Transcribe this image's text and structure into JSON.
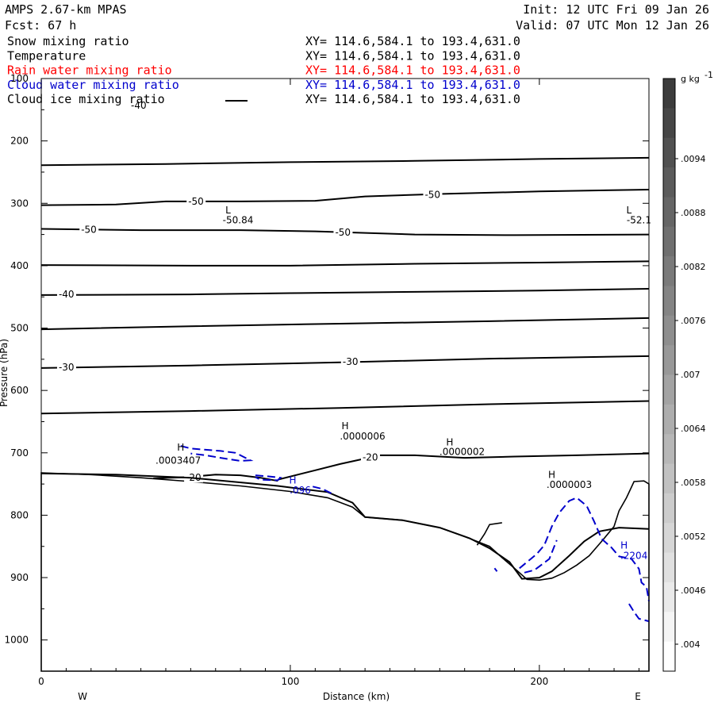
{
  "header": {
    "model": "AMPS 2.67-km MPAS",
    "fcst": "Fcst:    67 h",
    "init": "Init: 12 UTC Fri 09 Jan 26",
    "valid": "Valid: 07 UTC Mon 12 Jan 26"
  },
  "legend": [
    {
      "name": "Snow mixing ratio",
      "xy": "XY= 114.6,584.1 to 193.4,631.0",
      "color": "#000000"
    },
    {
      "name": "Temperature",
      "xy": "XY= 114.6,584.1 to 193.4,631.0",
      "color": "#000000"
    },
    {
      "name": "Rain water mixing ratio",
      "xy": "XY= 114.6,584.1 to 193.4,631.0",
      "color": "#ff0000"
    },
    {
      "name": "Cloud water mixing ratio",
      "xy": "XY= 114.6,584.1 to 193.4,631.0",
      "color": "#0000cc"
    },
    {
      "name": "Cloud ice mixing ratio",
      "xy": "XY= 114.6,584.1 to 193.4,631.0",
      "color": "#000000"
    }
  ],
  "chart_data": {
    "type": "cross-section",
    "xlabel": "Distance (km)",
    "ylabel": "Pressure (hPa)",
    "xlim": [
      0,
      244
    ],
    "ylim": [
      1050,
      100
    ],
    "xticks": [
      0,
      100,
      200
    ],
    "yticks": [
      100,
      200,
      300,
      400,
      500,
      600,
      700,
      800,
      900,
      1000
    ],
    "direction_labels": {
      "left": "W",
      "right": "E"
    },
    "colorbar": {
      "unit": "g kg",
      "unit_sup": "-1",
      "labels": [
        ".0094",
        ".0088",
        ".0082",
        ".0076",
        ".007",
        ".0064",
        ".0058",
        ".0052",
        ".0046",
        ".004"
      ]
    },
    "temperature_contours": [
      {
        "points": [
          [
            0,
            239
          ],
          [
            50,
            237
          ],
          [
            100,
            234
          ],
          [
            150,
            232
          ],
          [
            200,
            229
          ],
          [
            244,
            227
          ]
        ]
      },
      {
        "points": [
          [
            0,
            303
          ],
          [
            30,
            302
          ],
          [
            50,
            297
          ],
          [
            80,
            297
          ],
          [
            110,
            296
          ],
          [
            130,
            289
          ],
          [
            160,
            285
          ],
          [
            200,
            281
          ],
          [
            244,
            278
          ]
        ],
        "labels": [
          {
            "x": 59,
            "p": 297,
            "text": "-50"
          },
          {
            "x": 154,
            "p": 286,
            "text": "-50"
          }
        ]
      },
      {
        "points": [
          [
            0,
            341
          ],
          [
            40,
            343
          ],
          [
            80,
            343
          ],
          [
            110,
            345
          ],
          [
            150,
            350
          ],
          [
            190,
            351
          ],
          [
            244,
            350
          ]
        ],
        "labels": [
          {
            "x": 16,
            "p": 342,
            "text": "-50"
          },
          {
            "x": 118,
            "p": 347,
            "text": "-50"
          }
        ]
      },
      {
        "points": [
          [
            0,
            399
          ],
          [
            60,
            400
          ],
          [
            100,
            400
          ],
          [
            150,
            397
          ],
          [
            200,
            395
          ],
          [
            244,
            393
          ]
        ]
      },
      {
        "points": [
          [
            0,
            447
          ],
          [
            60,
            446
          ],
          [
            100,
            444
          ],
          [
            150,
            442
          ],
          [
            200,
            440
          ],
          [
            244,
            437
          ]
        ],
        "labels": [
          {
            "x": 7,
            "p": 446,
            "text": "-40"
          }
        ]
      },
      {
        "points": [
          [
            0,
            502
          ],
          [
            60,
            497
          ],
          [
            120,
            493
          ],
          [
            180,
            489
          ],
          [
            244,
            484
          ]
        ]
      },
      {
        "points": [
          [
            0,
            564
          ],
          [
            60,
            560
          ],
          [
            120,
            555
          ],
          [
            180,
            549
          ],
          [
            244,
            545
          ]
        ],
        "labels": [
          {
            "x": 7,
            "p": 563,
            "text": "-30"
          },
          {
            "x": 121,
            "p": 554,
            "text": "-30"
          }
        ]
      },
      {
        "points": [
          [
            0,
            637
          ],
          [
            60,
            633
          ],
          [
            120,
            628
          ],
          [
            180,
            622
          ],
          [
            244,
            617
          ]
        ]
      },
      {
        "points": [
          [
            95,
            743
          ],
          [
            110,
            728
          ],
          [
            120,
            718
          ],
          [
            128,
            711
          ],
          [
            135,
            704
          ],
          [
            150,
            704
          ],
          [
            170,
            708
          ],
          [
            190,
            706
          ],
          [
            215,
            704
          ],
          [
            244,
            701
          ]
        ],
        "labels": [
          {
            "x": 129,
            "p": 707,
            "text": "-20"
          }
        ]
      },
      {
        "points": [
          [
            45,
            741
          ],
          [
            58,
            739
          ],
          [
            70,
            735
          ],
          [
            80,
            736
          ],
          [
            88,
            740
          ],
          [
            95,
            745
          ]
        ],
        "labels": [
          {
            "x": 58,
            "p": 740,
            "text": "-20"
          }
        ]
      },
      {
        "points": [
          [
            0,
            733
          ],
          [
            30,
            735
          ],
          [
            60,
            740
          ],
          [
            95,
            753
          ],
          [
            115,
            763
          ],
          [
            125,
            780
          ],
          [
            130,
            803
          ],
          [
            145,
            808
          ],
          [
            160,
            820
          ],
          [
            172,
            837
          ],
          [
            180,
            853
          ],
          [
            188,
            875
          ],
          [
            193,
            902
          ],
          [
            200,
            900
          ],
          [
            205,
            890
          ],
          [
            212,
            865
          ],
          [
            218,
            842
          ],
          [
            224,
            826
          ],
          [
            232,
            820
          ],
          [
            244,
            822
          ]
        ]
      }
    ],
    "isotherm_top_label": {
      "x": 36,
      "p": 143,
      "text": "-40"
    },
    "terrain": {
      "points": [
        [
          0,
          732
        ],
        [
          20,
          735
        ],
        [
          40,
          740
        ],
        [
          60,
          746
        ],
        [
          80,
          753
        ],
        [
          100,
          762
        ],
        [
          115,
          772
        ],
        [
          125,
          787
        ],
        [
          130,
          803
        ],
        [
          145,
          808
        ],
        [
          160,
          820
        ],
        [
          170,
          834
        ],
        [
          180,
          850
        ],
        [
          185,
          868
        ],
        [
          190,
          885
        ],
        [
          195,
          903
        ],
        [
          200,
          904
        ],
        [
          205,
          901
        ],
        [
          210,
          892
        ],
        [
          215,
          880
        ],
        [
          220,
          865
        ],
        [
          225,
          842
        ],
        [
          230,
          818
        ],
        [
          232,
          793
        ],
        [
          235,
          772
        ],
        [
          238,
          746
        ],
        [
          242,
          745
        ],
        [
          244,
          750
        ],
        [
          244,
          1050
        ],
        [
          0,
          1050
        ]
      ],
      "valley_bump": [
        [
          175,
          848
        ],
        [
          178,
          830
        ],
        [
          180,
          815
        ],
        [
          185,
          812
        ]
      ]
    },
    "cloud_water_contours": [
      {
        "points": [
          [
            56,
            689
          ],
          [
            60,
            693
          ],
          [
            66,
            695
          ],
          [
            72,
            697
          ],
          [
            78,
            700
          ],
          [
            82,
            708
          ],
          [
            84,
            712
          ],
          [
            80,
            713
          ],
          [
            72,
            708
          ],
          [
            66,
            704
          ],
          [
            60,
            701
          ]
        ]
      },
      {
        "points": [
          [
            86,
            736
          ],
          [
            92,
            738
          ],
          [
            96,
            740
          ],
          [
            95,
            744
          ],
          [
            88,
            743
          ],
          [
            86,
            739
          ]
        ]
      },
      {
        "points": [
          [
            109,
            754
          ],
          [
            113,
            758
          ],
          [
            117,
            766
          ]
        ]
      },
      {
        "points": [
          [
            182,
            885
          ],
          [
            183,
            890
          ]
        ]
      },
      {
        "points": [
          [
            192,
            885
          ],
          [
            196,
            872
          ],
          [
            199,
            862
          ],
          [
            202,
            848
          ],
          [
            205,
            818
          ],
          [
            208,
            796
          ],
          [
            212,
            777
          ],
          [
            215,
            772
          ],
          [
            219,
            785
          ],
          [
            222,
            810
          ],
          [
            225,
            838
          ],
          [
            229,
            852
          ],
          [
            232,
            866
          ],
          [
            237,
            870
          ],
          [
            240,
            886
          ],
          [
            241,
            908
          ],
          [
            243,
            915
          ],
          [
            244,
            938
          ]
        ]
      },
      {
        "points": [
          [
            194,
            892
          ],
          [
            198,
            888
          ],
          [
            204,
            870
          ],
          [
            207,
            840
          ]
        ]
      },
      {
        "points": [
          [
            236,
            942
          ],
          [
            238,
            955
          ],
          [
            240,
            966
          ],
          [
            242,
            968
          ],
          [
            244,
            970
          ]
        ]
      }
    ],
    "annotations": [
      {
        "kind": "H",
        "x": 56,
        "p": 690,
        "text": "H"
      },
      {
        "kind": "value",
        "x": 55,
        "p": 711,
        "text": ".0003407"
      },
      {
        "kind": "H",
        "x": 101,
        "p": 743,
        "text": "H"
      },
      {
        "kind": "value",
        "x": 104,
        "p": 759,
        "text": ".096"
      },
      {
        "kind": "H",
        "x": 122,
        "p": 656,
        "text": "H"
      },
      {
        "kind": "value",
        "x": 129,
        "p": 672,
        "text": ".0000006"
      },
      {
        "kind": "H",
        "x": 164,
        "p": 682,
        "text": "H"
      },
      {
        "kind": "value",
        "x": 169,
        "p": 697,
        "text": ".0000002"
      },
      {
        "kind": "H",
        "x": 205,
        "p": 734,
        "text": "H"
      },
      {
        "kind": "value",
        "x": 212,
        "p": 750,
        "text": ".0000003"
      },
      {
        "kind": "H",
        "x": 234,
        "p": 847,
        "text": "H"
      },
      {
        "kind": "value",
        "x": 238,
        "p": 864,
        "text": ".2204"
      },
      {
        "kind": "L",
        "x": 75,
        "p": 310,
        "text": "L"
      },
      {
        "kind": "value",
        "x": 79,
        "p": 326,
        "text": "-50.84"
      },
      {
        "kind": "L",
        "x": 236,
        "p": 310,
        "text": "L"
      },
      {
        "kind": "value",
        "x": 240,
        "p": 326,
        "text": "-52.1"
      }
    ]
  }
}
